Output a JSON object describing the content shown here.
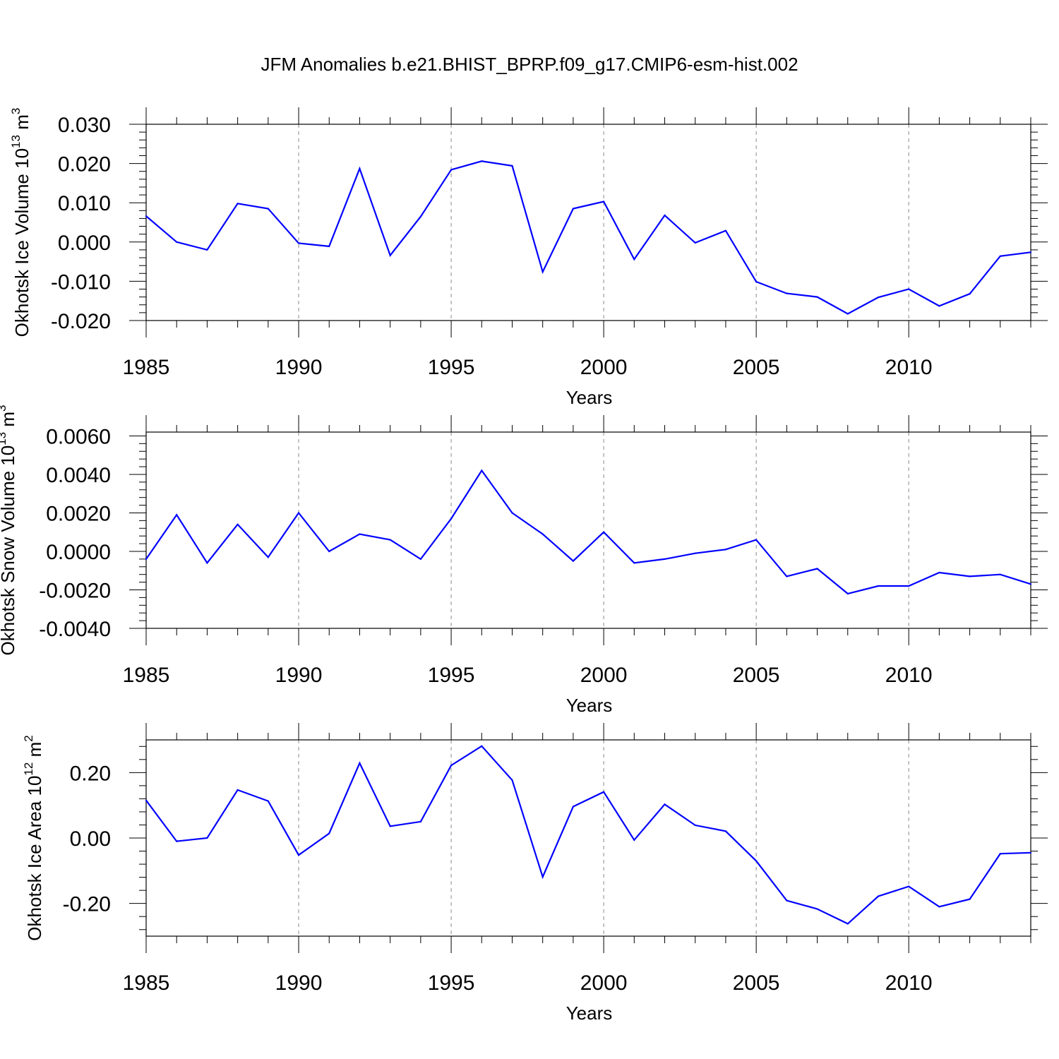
{
  "figure": {
    "title": "JFM Anomalies b.e21.BHIST_BPRP.f09_g17.CMIP6-esm-hist.002"
  },
  "chart_data": [
    {
      "type": "line",
      "title": "",
      "xlabel": "Years",
      "ylabel_main": "Okhotsk Ice Volume 10",
      "ylabel_exp": "13",
      "ylabel_unit": " m",
      "ylabel_unit_exp": "3",
      "xlim": [
        1985,
        2014
      ],
      "ylim": [
        -0.02,
        0.03
      ],
      "xticks": [
        1985,
        1990,
        1995,
        2000,
        2005,
        2010
      ],
      "xtick_labels": [
        "1985",
        "1990",
        "1995",
        "2000",
        "2005",
        "2010"
      ],
      "yticks": [
        -0.02,
        -0.01,
        0.0,
        0.01,
        0.02,
        0.03
      ],
      "ytick_labels": [
        "-0.020",
        "-0.010",
        "0.000",
        "0.010",
        "0.020",
        "0.030"
      ],
      "series": [
        {
          "name": "ice_volume",
          "color": "#0000ff",
          "x": [
            1985,
            1986,
            1987,
            1988,
            1989,
            1990,
            1991,
            1992,
            1993,
            1994,
            1995,
            1996,
            1997,
            1998,
            1999,
            2000,
            2001,
            2002,
            2003,
            2004,
            2005,
            2006,
            2007,
            2008,
            2009,
            2010,
            2011,
            2012,
            2013,
            2014
          ],
          "values": [
            0.0066,
            0.0,
            -0.002,
            0.0098,
            0.0085,
            -0.0003,
            -0.0011,
            0.0187,
            -0.0034,
            0.0065,
            0.0184,
            0.0206,
            0.0194,
            -0.0076,
            0.0085,
            0.0103,
            -0.0044,
            0.0068,
            -0.0002,
            0.0029,
            -0.0101,
            -0.0131,
            -0.014,
            -0.0183,
            -0.0141,
            -0.012,
            -0.0163,
            -0.0132,
            -0.0036,
            -0.0026
          ]
        }
      ]
    },
    {
      "type": "line",
      "title": "",
      "xlabel": "Years",
      "ylabel_main": "Okhotsk Snow Volume 10",
      "ylabel_exp": "13",
      "ylabel_unit": " m",
      "ylabel_unit_exp": "3",
      "xlim": [
        1985,
        2014
      ],
      "ylim": [
        -0.004,
        0.0062
      ],
      "xticks": [
        1985,
        1990,
        1995,
        2000,
        2005,
        2010
      ],
      "xtick_labels": [
        "1985",
        "1990",
        "1995",
        "2000",
        "2005",
        "2010"
      ],
      "yticks": [
        -0.004,
        -0.002,
        0.0,
        0.002,
        0.004,
        0.006
      ],
      "ytick_labels": [
        "-0.0040",
        "-0.0020",
        "0.0000",
        "0.0020",
        "0.0040",
        "0.0060"
      ],
      "series": [
        {
          "name": "snow_volume",
          "color": "#0000ff",
          "x": [
            1985,
            1986,
            1987,
            1988,
            1989,
            1990,
            1991,
            1992,
            1993,
            1994,
            1995,
            1996,
            1997,
            1998,
            1999,
            2000,
            2001,
            2002,
            2003,
            2004,
            2005,
            2006,
            2007,
            2008,
            2009,
            2010,
            2011,
            2012,
            2013,
            2014
          ],
          "values": [
            -0.0004,
            0.0019,
            -0.0006,
            0.0014,
            -0.0003,
            0.002,
            0.0,
            0.0009,
            0.0006,
            -0.0004,
            0.0017,
            0.0042,
            0.002,
            0.0009,
            -0.0005,
            0.001,
            -0.0006,
            -0.0004,
            -0.0001,
            0.0001,
            0.0006,
            -0.0013,
            -0.0009,
            -0.0022,
            -0.0018,
            -0.0018,
            -0.0011,
            -0.0013,
            -0.0012,
            -0.0017
          ]
        }
      ]
    },
    {
      "type": "line",
      "title": "",
      "xlabel": "Years",
      "ylabel_main": "Okhotsk Ice Area 10",
      "ylabel_exp": "12",
      "ylabel_unit": " m",
      "ylabel_unit_exp": "2",
      "xlim": [
        1985,
        2014
      ],
      "ylim": [
        -0.3,
        0.3
      ],
      "xticks": [
        1985,
        1990,
        1995,
        2000,
        2005,
        2010
      ],
      "xtick_labels": [
        "1985",
        "1990",
        "1995",
        "2000",
        "2005",
        "2010"
      ],
      "yticks": [
        -0.2,
        0.0,
        0.2
      ],
      "ytick_labels": [
        "-0.20",
        "0.00",
        "0.20"
      ],
      "series": [
        {
          "name": "ice_area",
          "color": "#0000ff",
          "x": [
            1985,
            1986,
            1987,
            1988,
            1989,
            1990,
            1991,
            1992,
            1993,
            1994,
            1995,
            1996,
            1997,
            1998,
            1999,
            2000,
            2001,
            2002,
            2003,
            2004,
            2005,
            2006,
            2007,
            2008,
            2009,
            2010,
            2011,
            2012,
            2013,
            2014
          ],
          "values": [
            0.115,
            -0.01,
            0.0,
            0.147,
            0.113,
            -0.052,
            0.014,
            0.229,
            0.036,
            0.05,
            0.222,
            0.281,
            0.177,
            -0.119,
            0.096,
            0.141,
            -0.006,
            0.103,
            0.039,
            0.021,
            -0.07,
            -0.191,
            -0.217,
            -0.262,
            -0.178,
            -0.148,
            -0.21,
            -0.187,
            -0.048,
            -0.045
          ]
        }
      ]
    }
  ]
}
